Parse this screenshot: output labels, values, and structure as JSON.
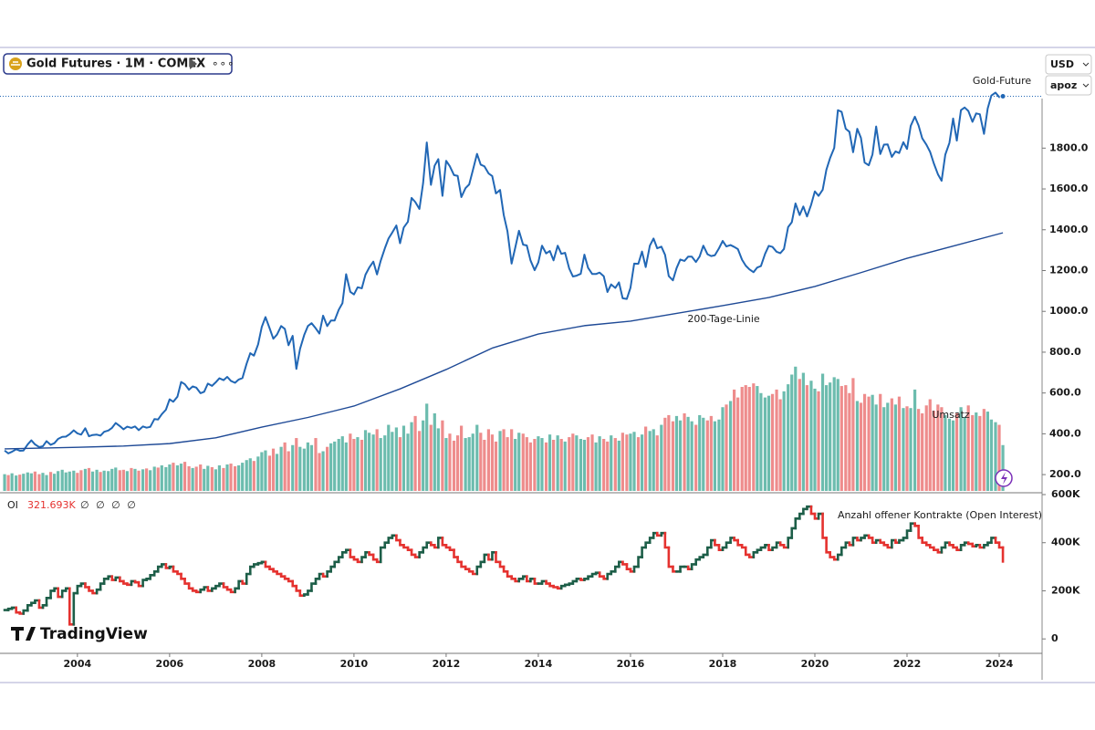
{
  "chart_data": {
    "type": "line",
    "title": "Gold Futures · 1M · COMEX",
    "currency": "USD",
    "unit": "apoz",
    "brand": "TradingView",
    "xlim": [
      2002.32,
      2024.93
    ],
    "xticks": [
      2004,
      2006,
      2008,
      2010,
      2012,
      2014,
      2016,
      2018,
      2020,
      2022,
      2024
    ],
    "ylim": [
      120,
      2280
    ],
    "yticks": [
      {
        "value": 200,
        "label": "200.0"
      },
      {
        "value": 400,
        "label": "400.0"
      },
      {
        "value": 600,
        "label": "600.0"
      },
      {
        "value": 800,
        "label": "800.0"
      },
      {
        "value": 1000,
        "label": "1000.0"
      },
      {
        "value": 1200,
        "label": "1200.0"
      },
      {
        "value": 1400,
        "label": "1400.0"
      },
      {
        "value": 1600,
        "label": "1600.0"
      },
      {
        "value": 1800,
        "label": "1800.0"
      }
    ],
    "x": [
      2002.42,
      2002.5,
      2002.58,
      2002.67,
      2002.75,
      2002.83,
      2002.92,
      2003,
      2003.08,
      2003.17,
      2003.25,
      2003.33,
      2003.42,
      2003.5,
      2003.58,
      2003.67,
      2003.75,
      2003.83,
      2003.92,
      2004,
      2004.08,
      2004.17,
      2004.25,
      2004.33,
      2004.42,
      2004.5,
      2004.58,
      2004.67,
      2004.75,
      2004.83,
      2004.92,
      2005,
      2005.08,
      2005.17,
      2005.25,
      2005.33,
      2005.42,
      2005.5,
      2005.58,
      2005.67,
      2005.75,
      2005.83,
      2005.92,
      2006,
      2006.08,
      2006.17,
      2006.25,
      2006.33,
      2006.42,
      2006.5,
      2006.58,
      2006.67,
      2006.75,
      2006.83,
      2006.92,
      2007,
      2007.08,
      2007.17,
      2007.25,
      2007.33,
      2007.42,
      2007.5,
      2007.58,
      2007.67,
      2007.75,
      2007.83,
      2007.92,
      2008,
      2008.08,
      2008.17,
      2008.25,
      2008.33,
      2008.42,
      2008.5,
      2008.58,
      2008.67,
      2008.75,
      2008.83,
      2008.92,
      2009,
      2009.08,
      2009.17,
      2009.25,
      2009.33,
      2009.42,
      2009.5,
      2009.58,
      2009.67,
      2009.75,
      2009.83,
      2009.92,
      2010,
      2010.08,
      2010.17,
      2010.25,
      2010.33,
      2010.42,
      2010.5,
      2010.58,
      2010.67,
      2010.75,
      2010.83,
      2010.92,
      2011,
      2011.08,
      2011.17,
      2011.25,
      2011.33,
      2011.42,
      2011.5,
      2011.58,
      2011.67,
      2011.75,
      2011.83,
      2011.92,
      2012,
      2012.08,
      2012.17,
      2012.25,
      2012.33,
      2012.42,
      2012.5,
      2012.58,
      2012.67,
      2012.75,
      2012.83,
      2012.92,
      2013,
      2013.08,
      2013.17,
      2013.25,
      2013.33,
      2013.42,
      2013.5,
      2013.58,
      2013.67,
      2013.75,
      2013.83,
      2013.92,
      2014,
      2014.08,
      2014.17,
      2014.25,
      2014.33,
      2014.42,
      2014.5,
      2014.58,
      2014.67,
      2014.75,
      2014.83,
      2014.92,
      2015,
      2015.08,
      2015.17,
      2015.25,
      2015.33,
      2015.42,
      2015.5,
      2015.58,
      2015.67,
      2015.75,
      2015.83,
      2015.92,
      2016,
      2016.08,
      2016.17,
      2016.25,
      2016.33,
      2016.42,
      2016.5,
      2016.58,
      2016.67,
      2016.75,
      2016.83,
      2016.92,
      2017,
      2017.08,
      2017.17,
      2017.25,
      2017.33,
      2017.42,
      2017.5,
      2017.58,
      2017.67,
      2017.75,
      2017.83,
      2017.92,
      2018,
      2018.08,
      2018.17,
      2018.25,
      2018.33,
      2018.42,
      2018.5,
      2018.58,
      2018.67,
      2018.75,
      2018.83,
      2018.92,
      2019,
      2019.08,
      2019.17,
      2019.25,
      2019.33,
      2019.42,
      2019.5,
      2019.58,
      2019.67,
      2019.75,
      2019.83,
      2019.92,
      2020,
      2020.08,
      2020.17,
      2020.25,
      2020.33,
      2020.42,
      2020.5,
      2020.58,
      2020.67,
      2020.75,
      2020.83,
      2020.92,
      2021,
      2021.08,
      2021.17,
      2021.25,
      2021.33,
      2021.42,
      2021.5,
      2021.58,
      2021.67,
      2021.75,
      2021.83,
      2021.92,
      2022,
      2022.08,
      2022.17,
      2022.25,
      2022.33,
      2022.42,
      2022.5,
      2022.58,
      2022.67,
      2022.75,
      2022.83,
      2022.92,
      2023,
      2023.08,
      2023.17,
      2023.25,
      2023.33,
      2023.42,
      2023.5,
      2023.58,
      2023.67,
      2023.75,
      2023.83,
      2023.92,
      2024,
      2024.08
    ],
    "series": [
      {
        "name": "Gold-Future",
        "color": "#2167b5",
        "values": [
          318,
          304,
          312,
          324,
          317,
          318,
          348,
          368,
          348,
          335,
          339,
          364,
          346,
          354,
          375,
          385,
          386,
          398,
          417,
          402,
          396,
          427,
          388,
          394,
          396,
          391,
          410,
          416,
          429,
          453,
          438,
          422,
          435,
          429,
          436,
          418,
          436,
          430,
          434,
          472,
          470,
          496,
          518,
          569,
          557,
          582,
          654,
          643,
          616,
          632,
          626,
          599,
          606,
          646,
          635,
          652,
          672,
          663,
          679,
          659,
          650,
          666,
          673,
          743,
          795,
          783,
          838,
          924,
          972,
          917,
          866,
          886,
          928,
          914,
          834,
          880,
          718,
          816,
          884,
          928,
          942,
          917,
          891,
          979,
          928,
          955,
          955,
          1008,
          1040,
          1182,
          1096,
          1083,
          1118,
          1113,
          1180,
          1214,
          1244,
          1181,
          1248,
          1309,
          1357,
          1386,
          1421,
          1334,
          1411,
          1439,
          1556,
          1536,
          1502,
          1628,
          1828,
          1620,
          1714,
          1746,
          1566,
          1738,
          1711,
          1668,
          1664,
          1560,
          1604,
          1622,
          1692,
          1772,
          1719,
          1711,
          1676,
          1663,
          1578,
          1595,
          1472,
          1393,
          1234,
          1313,
          1395,
          1327,
          1323,
          1250,
          1202,
          1240,
          1322,
          1284,
          1296,
          1250,
          1322,
          1282,
          1287,
          1210,
          1171,
          1175,
          1184,
          1278,
          1213,
          1183,
          1183,
          1190,
          1172,
          1095,
          1132,
          1115,
          1142,
          1064,
          1061,
          1116,
          1234,
          1233,
          1293,
          1217,
          1322,
          1357,
          1309,
          1317,
          1277,
          1173,
          1152,
          1212,
          1254,
          1247,
          1268,
          1268,
          1242,
          1269,
          1322,
          1280,
          1271,
          1275,
          1309,
          1345,
          1318,
          1325,
          1316,
          1305,
          1253,
          1224,
          1206,
          1192,
          1215,
          1222,
          1282,
          1321,
          1316,
          1292,
          1285,
          1306,
          1413,
          1437,
          1529,
          1472,
          1514,
          1465,
          1523,
          1588,
          1566,
          1596,
          1694,
          1751,
          1801,
          1986,
          1978,
          1895,
          1880,
          1780,
          1895,
          1850,
          1729,
          1716,
          1769,
          1906,
          1771,
          1817,
          1818,
          1757,
          1784,
          1776,
          1829,
          1796,
          1909,
          1954,
          1911,
          1848,
          1817,
          1782,
          1726,
          1672,
          1640,
          1768,
          1826,
          1945,
          1837,
          1986,
          1999,
          1982,
          1929,
          1970,
          1966,
          1870,
          1994,
          2058,
          2072,
          2050,
          2054
        ]
      },
      {
        "name": "200-Tage-Linie",
        "color": "#1f4a96",
        "x": [
          2002.42,
          2004,
          2005,
          2006,
          2007,
          2008,
          2009,
          2010,
          2011,
          2012,
          2013,
          2014,
          2015,
          2016,
          2017,
          2018,
          2019,
          2020,
          2021,
          2022,
          2023,
          2024.08
        ],
        "values": [
          326,
          334,
          340,
          352,
          380,
          433,
          480,
          536,
          620,
          715,
          820,
          889,
          930,
          952,
          990,
          1028,
          1068,
          1122,
          1190,
          1260,
          1320,
          1385
        ]
      }
    ],
    "volume": {
      "name": "Umsatz",
      "ylim": [
        0,
        1000
      ],
      "up_color": "#6cbcae",
      "down_color": "#ee8c8c",
      "values": [
        38,
        36,
        40,
        35,
        37,
        39,
        42,
        40,
        44,
        38,
        41,
        36,
        43,
        39,
        45,
        48,
        42,
        44,
        46,
        41,
        47,
        50,
        52,
        44,
        48,
        43,
        46,
        45,
        50,
        53,
        47,
        48,
        45,
        52,
        50,
        46,
        49,
        51,
        47,
        55,
        53,
        58,
        54,
        60,
        64,
        58,
        62,
        66,
        56,
        52,
        55,
        60,
        50,
        57,
        54,
        49,
        58,
        52,
        60,
        62,
        56,
        58,
        64,
        70,
        74,
        68,
        78,
        88,
        92,
        80,
        96,
        84,
        100,
        110,
        90,
        104,
        120,
        100,
        96,
        110,
        104,
        120,
        86,
        90,
        100,
        108,
        112,
        118,
        124,
        110,
        130,
        118,
        122,
        116,
        138,
        132,
        128,
        140,
        120,
        126,
        150,
        134,
        144,
        122,
        148,
        130,
        156,
        170,
        136,
        160,
        198,
        150,
        176,
        142,
        160,
        120,
        130,
        114,
        126,
        148,
        120,
        122,
        130,
        150,
        132,
        116,
        140,
        128,
        112,
        136,
        140,
        122,
        140,
        118,
        132,
        130,
        122,
        110,
        118,
        124,
        120,
        110,
        128,
        116,
        126,
        118,
        112,
        122,
        130,
        126,
        118,
        116,
        122,
        128,
        110,
        124,
        118,
        112,
        126,
        120,
        114,
        132,
        128,
        130,
        134,
        122,
        128,
        146,
        136,
        140,
        126,
        150,
        166,
        172,
        158,
        170,
        160,
        176,
        168,
        158,
        150,
        172,
        166,
        160,
        170,
        158,
        162,
        190,
        196,
        204,
        230,
        212,
        236,
        240,
        236,
        244,
        238,
        222,
        212,
        216,
        220,
        230,
        208,
        226,
        242,
        264,
        282,
        254,
        268,
        240,
        250,
        232,
        226,
        266,
        240,
        246,
        258,
        254,
        238,
        240,
        222,
        256,
        204,
        200,
        220,
        214,
        218,
        196,
        220,
        190,
        200,
        210,
        196,
        214,
        188,
        192,
        188,
        230,
        186,
        176,
        194,
        208,
        182,
        196,
        190,
        172,
        164,
        160,
        176,
        190,
        168,
        194,
        172,
        178,
        170,
        186,
        180,
        162,
        156,
        150,
        104
      ]
    },
    "open_interest": {
      "name": "Anzahl offener Kontrakte (Open Interest)",
      "label": "OI",
      "current": {
        "value": 321693,
        "label": "321.693K"
      },
      "extras": "∅ ∅ ∅ ∅",
      "up_color": "#1d5e48",
      "down_color": "#e5322f",
      "ylim": [
        -60000,
        600000
      ],
      "yticks": [
        0,
        {
          "value": 200000,
          "label": "200K"
        },
        {
          "value": 400000,
          "label": "400K"
        },
        {
          "value": 600000,
          "label": "600K"
        }
      ],
      "values": [
        120000,
        125000,
        130000,
        110000,
        105000,
        118000,
        140000,
        150000,
        160000,
        130000,
        140000,
        170000,
        200000,
        210000,
        175000,
        200000,
        210000,
        60000,
        190000,
        220000,
        230000,
        215000,
        200000,
        190000,
        205000,
        230000,
        250000,
        260000,
        245000,
        255000,
        240000,
        230000,
        225000,
        240000,
        235000,
        220000,
        245000,
        250000,
        265000,
        280000,
        300000,
        310000,
        295000,
        300000,
        280000,
        270000,
        250000,
        230000,
        210000,
        200000,
        195000,
        205000,
        215000,
        200000,
        210000,
        220000,
        230000,
        215000,
        205000,
        195000,
        210000,
        240000,
        230000,
        270000,
        300000,
        310000,
        315000,
        320000,
        300000,
        290000,
        280000,
        270000,
        260000,
        250000,
        240000,
        220000,
        200000,
        180000,
        185000,
        200000,
        230000,
        250000,
        270000,
        260000,
        280000,
        300000,
        320000,
        340000,
        360000,
        370000,
        340000,
        330000,
        320000,
        340000,
        360000,
        350000,
        330000,
        320000,
        380000,
        400000,
        420000,
        430000,
        410000,
        390000,
        380000,
        370000,
        350000,
        340000,
        360000,
        380000,
        400000,
        390000,
        380000,
        420000,
        390000,
        380000,
        370000,
        340000,
        320000,
        300000,
        290000,
        280000,
        270000,
        300000,
        320000,
        350000,
        330000,
        360000,
        320000,
        300000,
        280000,
        260000,
        250000,
        240000,
        250000,
        260000,
        240000,
        250000,
        230000,
        230000,
        240000,
        230000,
        220000,
        215000,
        210000,
        220000,
        225000,
        230000,
        240000,
        250000,
        245000,
        250000,
        260000,
        270000,
        275000,
        260000,
        250000,
        270000,
        280000,
        300000,
        320000,
        310000,
        290000,
        280000,
        300000,
        340000,
        380000,
        400000,
        420000,
        440000,
        430000,
        440000,
        380000,
        300000,
        280000,
        280000,
        300000,
        300000,
        290000,
        310000,
        330000,
        340000,
        350000,
        380000,
        410000,
        390000,
        370000,
        380000,
        400000,
        420000,
        410000,
        390000,
        380000,
        350000,
        340000,
        360000,
        370000,
        380000,
        390000,
        370000,
        380000,
        400000,
        390000,
        380000,
        420000,
        460000,
        500000,
        520000,
        540000,
        550000,
        520000,
        500000,
        520000,
        420000,
        360000,
        340000,
        330000,
        350000,
        380000,
        400000,
        390000,
        420000,
        410000,
        420000,
        430000,
        420000,
        400000,
        410000,
        400000,
        390000,
        380000,
        410000,
        400000,
        410000,
        420000,
        450000,
        480000,
        470000,
        420000,
        400000,
        390000,
        380000,
        370000,
        360000,
        380000,
        400000,
        390000,
        380000,
        370000,
        390000,
        400000,
        395000,
        385000,
        390000,
        380000,
        390000,
        400000,
        420000,
        400000,
        380000,
        321693
      ]
    }
  }
}
